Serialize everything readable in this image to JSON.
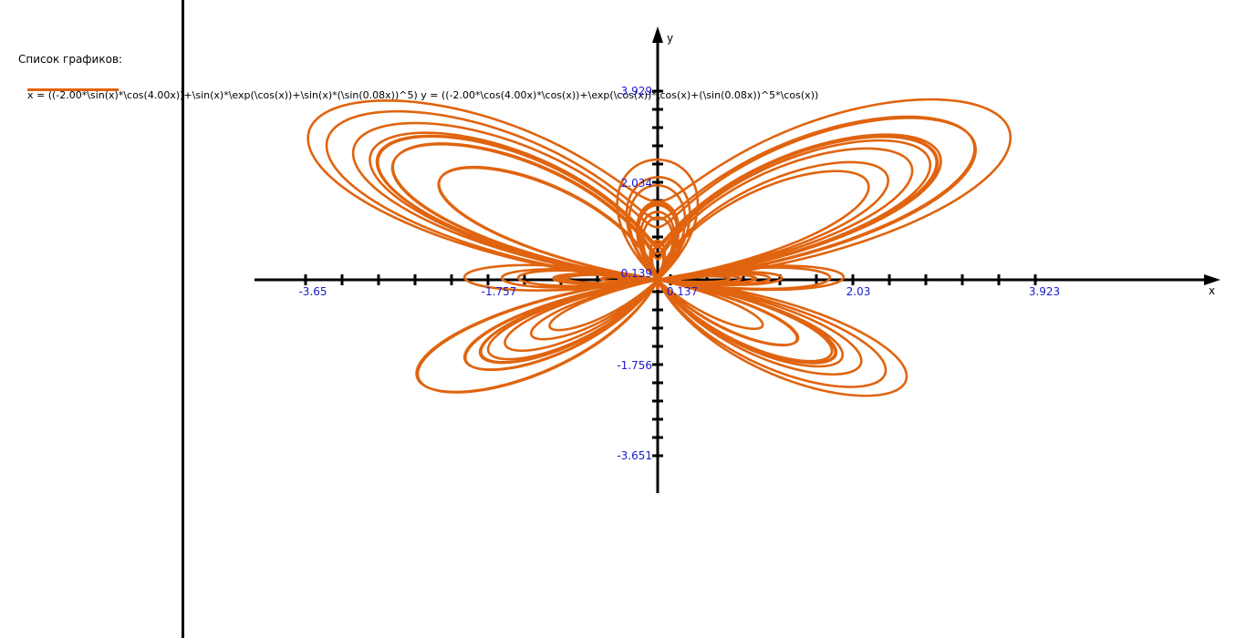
{
  "graph_list": {
    "title": "Список графиков:",
    "entries": [
      {
        "formula": "x = ((-2.00*\\sin(x)*\\cos(4.00x))+\\sin(x)*\\exp(\\cos(x))+\\sin(x)*(\\sin(0.08x))^5)  y = ((-2.00*\\cos(4.00x)*\\cos(x))+\\exp(\\cos(x))*\\cos(x)+(\\sin(0.08x))^5*\\cos(x))",
        "color": "#e0640f"
      }
    ]
  },
  "chart_data": {
    "type": "line",
    "curve": "parametric",
    "parameter": "t",
    "t_range": [
      0,
      78.54
    ],
    "x_expr": "-2*sin(t)*cos(4t)+sin(t)*exp(cos(t))+sin(t)*sin(0.08t)^5",
    "y_expr": "-2*cos(4t)*cos(t)+exp(cos(t))*cos(t)+sin(0.08t)^5*cos(t)",
    "series_color": "#e0640f",
    "xlabel": "x",
    "ylabel": "y",
    "x_ticks": [
      "-3.65",
      "-1.757",
      "0.137",
      "2.03",
      "3.923"
    ],
    "y_ticks": [
      "3.929",
      "2.034",
      "0.139",
      "-1.756",
      "-3.651"
    ],
    "origin_tick_label": "0.139",
    "x_origin_tick_label": "0.137",
    "xlim": [
      -4.42,
      11.8
    ],
    "ylim": [
      -4.66,
      6.43
    ],
    "grid": false,
    "axis_color": "#000000",
    "tick_label_color": "#1a1acc"
  }
}
